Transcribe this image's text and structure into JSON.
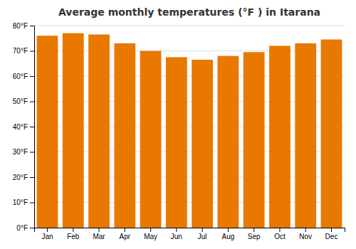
{
  "chart_data": {
    "type": "bar",
    "title": "Average monthly temperatures (°F ) in Itarana",
    "categories": [
      "Jan",
      "Feb",
      "Mar",
      "Apr",
      "May",
      "Jun",
      "Jul",
      "Aug",
      "Sep",
      "Oct",
      "Nov",
      "Dec"
    ],
    "values": [
      76,
      77,
      76.5,
      73,
      70,
      67.5,
      66.5,
      68,
      69.5,
      72,
      73,
      74.5
    ],
    "color": "#E87800",
    "ylim": [
      0,
      80
    ],
    "yticks": [
      {
        "value": 0,
        "label": "0°F"
      },
      {
        "value": 10,
        "label": "10°F"
      },
      {
        "value": 20,
        "label": "20°F"
      },
      {
        "value": 30,
        "label": "30°F"
      },
      {
        "value": 40,
        "label": "40°F"
      },
      {
        "value": 50,
        "label": "50°F"
      },
      {
        "value": 60,
        "label": "60°F"
      },
      {
        "value": 70,
        "label": "70°F"
      },
      {
        "value": 80,
        "label": "80°F"
      }
    ],
    "grid": true
  }
}
